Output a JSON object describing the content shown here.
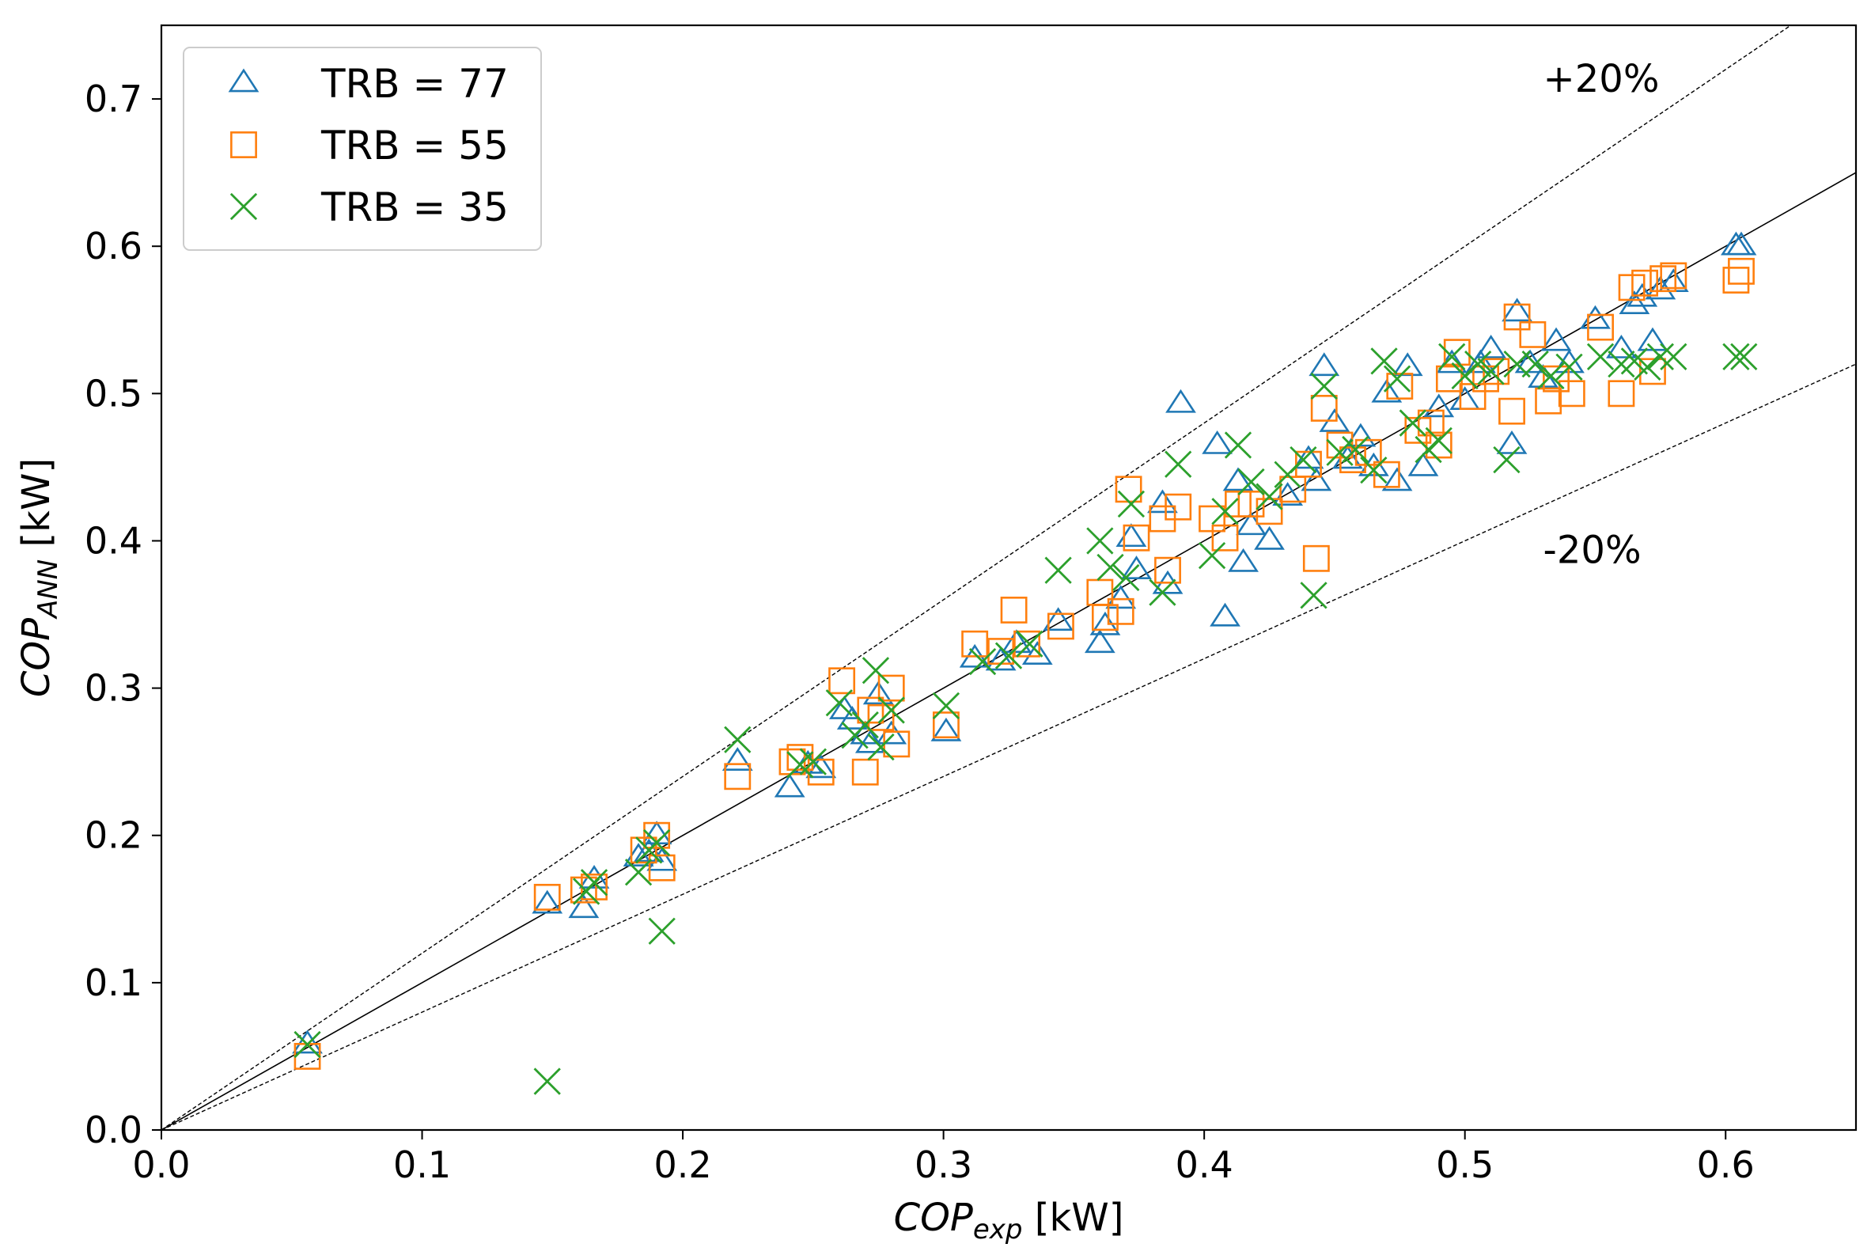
{
  "chart_data": {
    "type": "scatter",
    "title": "",
    "xlabel": {
      "main": "COP",
      "sub": "exp",
      "unit": " [kW]"
    },
    "ylabel": {
      "main": "COP",
      "sub": "ANN",
      "unit": " [kW]"
    },
    "xlim": [
      0.0,
      0.65
    ],
    "ylim": [
      0.0,
      0.75
    ],
    "xticks": [
      0.0,
      0.1,
      0.2,
      0.3,
      0.4,
      0.5,
      0.6
    ],
    "yticks": [
      0.0,
      0.1,
      0.2,
      0.3,
      0.4,
      0.5,
      0.6,
      0.7
    ],
    "xtick_labels": [
      "0.0",
      "0.1",
      "0.2",
      "0.3",
      "0.4",
      "0.5",
      "0.6"
    ],
    "ytick_labels": [
      "0.0",
      "0.1",
      "0.2",
      "0.3",
      "0.4",
      "0.5",
      "0.6",
      "0.7"
    ],
    "grid": false,
    "legend_position": "top-left",
    "reference_lines": [
      {
        "name": "identity",
        "slope": 1.0,
        "style": "solid"
      },
      {
        "name": "plus-20-percent",
        "slope": 1.2,
        "style": "dashed"
      },
      {
        "name": "minus-20-percent",
        "slope": 0.8,
        "style": "dashed"
      }
    ],
    "annotations": [
      {
        "text": "+20%",
        "x": 0.53,
        "y": 0.705
      },
      {
        "text": "-20%",
        "x": 0.53,
        "y": 0.385
      }
    ],
    "series": [
      {
        "name": "TRB = 77",
        "marker": "triangle",
        "color": "#1f77b4",
        "x": [
          0.056,
          0.148,
          0.162,
          0.166,
          0.183,
          0.187,
          0.19,
          0.192,
          0.221,
          0.241,
          0.248,
          0.253,
          0.262,
          0.265,
          0.27,
          0.272,
          0.275,
          0.28,
          0.301,
          0.312,
          0.322,
          0.328,
          0.336,
          0.344,
          0.36,
          0.362,
          0.368,
          0.372,
          0.374,
          0.384,
          0.386,
          0.391,
          0.405,
          0.408,
          0.413,
          0.415,
          0.418,
          0.425,
          0.432,
          0.44,
          0.443,
          0.446,
          0.45,
          0.455,
          0.46,
          0.465,
          0.47,
          0.474,
          0.478,
          0.484,
          0.49,
          0.495,
          0.5,
          0.506,
          0.51,
          0.518,
          0.52,
          0.525,
          0.53,
          0.535,
          0.54,
          0.55,
          0.56,
          0.565,
          0.568,
          0.572,
          0.575,
          0.58,
          0.604,
          0.606
        ],
        "y": [
          0.058,
          0.153,
          0.15,
          0.17,
          0.185,
          0.188,
          0.2,
          0.182,
          0.25,
          0.232,
          0.248,
          0.245,
          0.285,
          0.278,
          0.268,
          0.262,
          0.295,
          0.268,
          0.27,
          0.32,
          0.318,
          0.33,
          0.322,
          0.345,
          0.33,
          0.342,
          0.36,
          0.402,
          0.38,
          0.425,
          0.37,
          0.493,
          0.465,
          0.348,
          0.44,
          0.385,
          0.41,
          0.4,
          0.43,
          0.455,
          0.44,
          0.518,
          0.48,
          0.455,
          0.47,
          0.45,
          0.5,
          0.44,
          0.518,
          0.45,
          0.49,
          0.52,
          0.495,
          0.52,
          0.53,
          0.465,
          0.555,
          0.52,
          0.51,
          0.535,
          0.52,
          0.55,
          0.53,
          0.56,
          0.565,
          0.535,
          0.57,
          0.575,
          0.6,
          0.6
        ]
      },
      {
        "name": "TRB = 55",
        "marker": "square",
        "color": "#ff7f0e",
        "x": [
          0.056,
          0.148,
          0.162,
          0.166,
          0.185,
          0.19,
          0.192,
          0.221,
          0.242,
          0.245,
          0.253,
          0.261,
          0.27,
          0.272,
          0.276,
          0.28,
          0.282,
          0.301,
          0.312,
          0.322,
          0.327,
          0.332,
          0.345,
          0.36,
          0.362,
          0.368,
          0.371,
          0.374,
          0.384,
          0.386,
          0.39,
          0.403,
          0.408,
          0.413,
          0.418,
          0.425,
          0.434,
          0.44,
          0.443,
          0.446,
          0.452,
          0.457,
          0.463,
          0.47,
          0.475,
          0.482,
          0.487,
          0.49,
          0.494,
          0.497,
          0.503,
          0.508,
          0.512,
          0.518,
          0.52,
          0.526,
          0.532,
          0.535,
          0.541,
          0.552,
          0.56,
          0.564,
          0.569,
          0.572,
          0.576,
          0.58,
          0.604,
          0.606
        ],
        "y": [
          0.05,
          0.158,
          0.163,
          0.165,
          0.19,
          0.2,
          0.178,
          0.24,
          0.25,
          0.253,
          0.243,
          0.305,
          0.243,
          0.285,
          0.28,
          0.3,
          0.262,
          0.275,
          0.33,
          0.325,
          0.353,
          0.33,
          0.342,
          0.365,
          0.348,
          0.352,
          0.435,
          0.402,
          0.415,
          0.38,
          0.423,
          0.415,
          0.402,
          0.425,
          0.425,
          0.42,
          0.435,
          0.452,
          0.388,
          0.49,
          0.465,
          0.455,
          0.46,
          0.445,
          0.505,
          0.475,
          0.48,
          0.465,
          0.51,
          0.528,
          0.498,
          0.51,
          0.515,
          0.488,
          0.552,
          0.54,
          0.495,
          0.51,
          0.5,
          0.545,
          0.5,
          0.572,
          0.575,
          0.515,
          0.578,
          0.58,
          0.577,
          0.583
        ]
      },
      {
        "name": "TRB = 35",
        "marker": "x",
        "color": "#2ca02c",
        "x": [
          0.056,
          0.148,
          0.163,
          0.166,
          0.183,
          0.187,
          0.19,
          0.192,
          0.221,
          0.245,
          0.25,
          0.26,
          0.266,
          0.27,
          0.274,
          0.276,
          0.28,
          0.301,
          0.315,
          0.325,
          0.333,
          0.344,
          0.36,
          0.364,
          0.37,
          0.372,
          0.384,
          0.39,
          0.403,
          0.408,
          0.413,
          0.418,
          0.425,
          0.432,
          0.438,
          0.442,
          0.446,
          0.452,
          0.458,
          0.465,
          0.469,
          0.474,
          0.48,
          0.486,
          0.49,
          0.495,
          0.5,
          0.505,
          0.51,
          0.516,
          0.52,
          0.527,
          0.533,
          0.54,
          0.552,
          0.56,
          0.565,
          0.57,
          0.575,
          0.58,
          0.604,
          0.607
        ],
        "y": [
          0.058,
          0.033,
          0.162,
          0.168,
          0.175,
          0.19,
          0.195,
          0.135,
          0.265,
          0.248,
          0.25,
          0.29,
          0.268,
          0.275,
          0.312,
          0.26,
          0.285,
          0.288,
          0.318,
          0.322,
          0.33,
          0.38,
          0.4,
          0.382,
          0.375,
          0.425,
          0.365,
          0.452,
          0.39,
          0.42,
          0.465,
          0.44,
          0.43,
          0.445,
          0.455,
          0.363,
          0.505,
          0.46,
          0.462,
          0.448,
          0.522,
          0.51,
          0.48,
          0.462,
          0.468,
          0.525,
          0.512,
          0.52,
          0.515,
          0.455,
          0.52,
          0.52,
          0.512,
          0.518,
          0.525,
          0.52,
          0.522,
          0.518,
          0.525,
          0.525,
          0.525,
          0.525
        ]
      }
    ]
  }
}
